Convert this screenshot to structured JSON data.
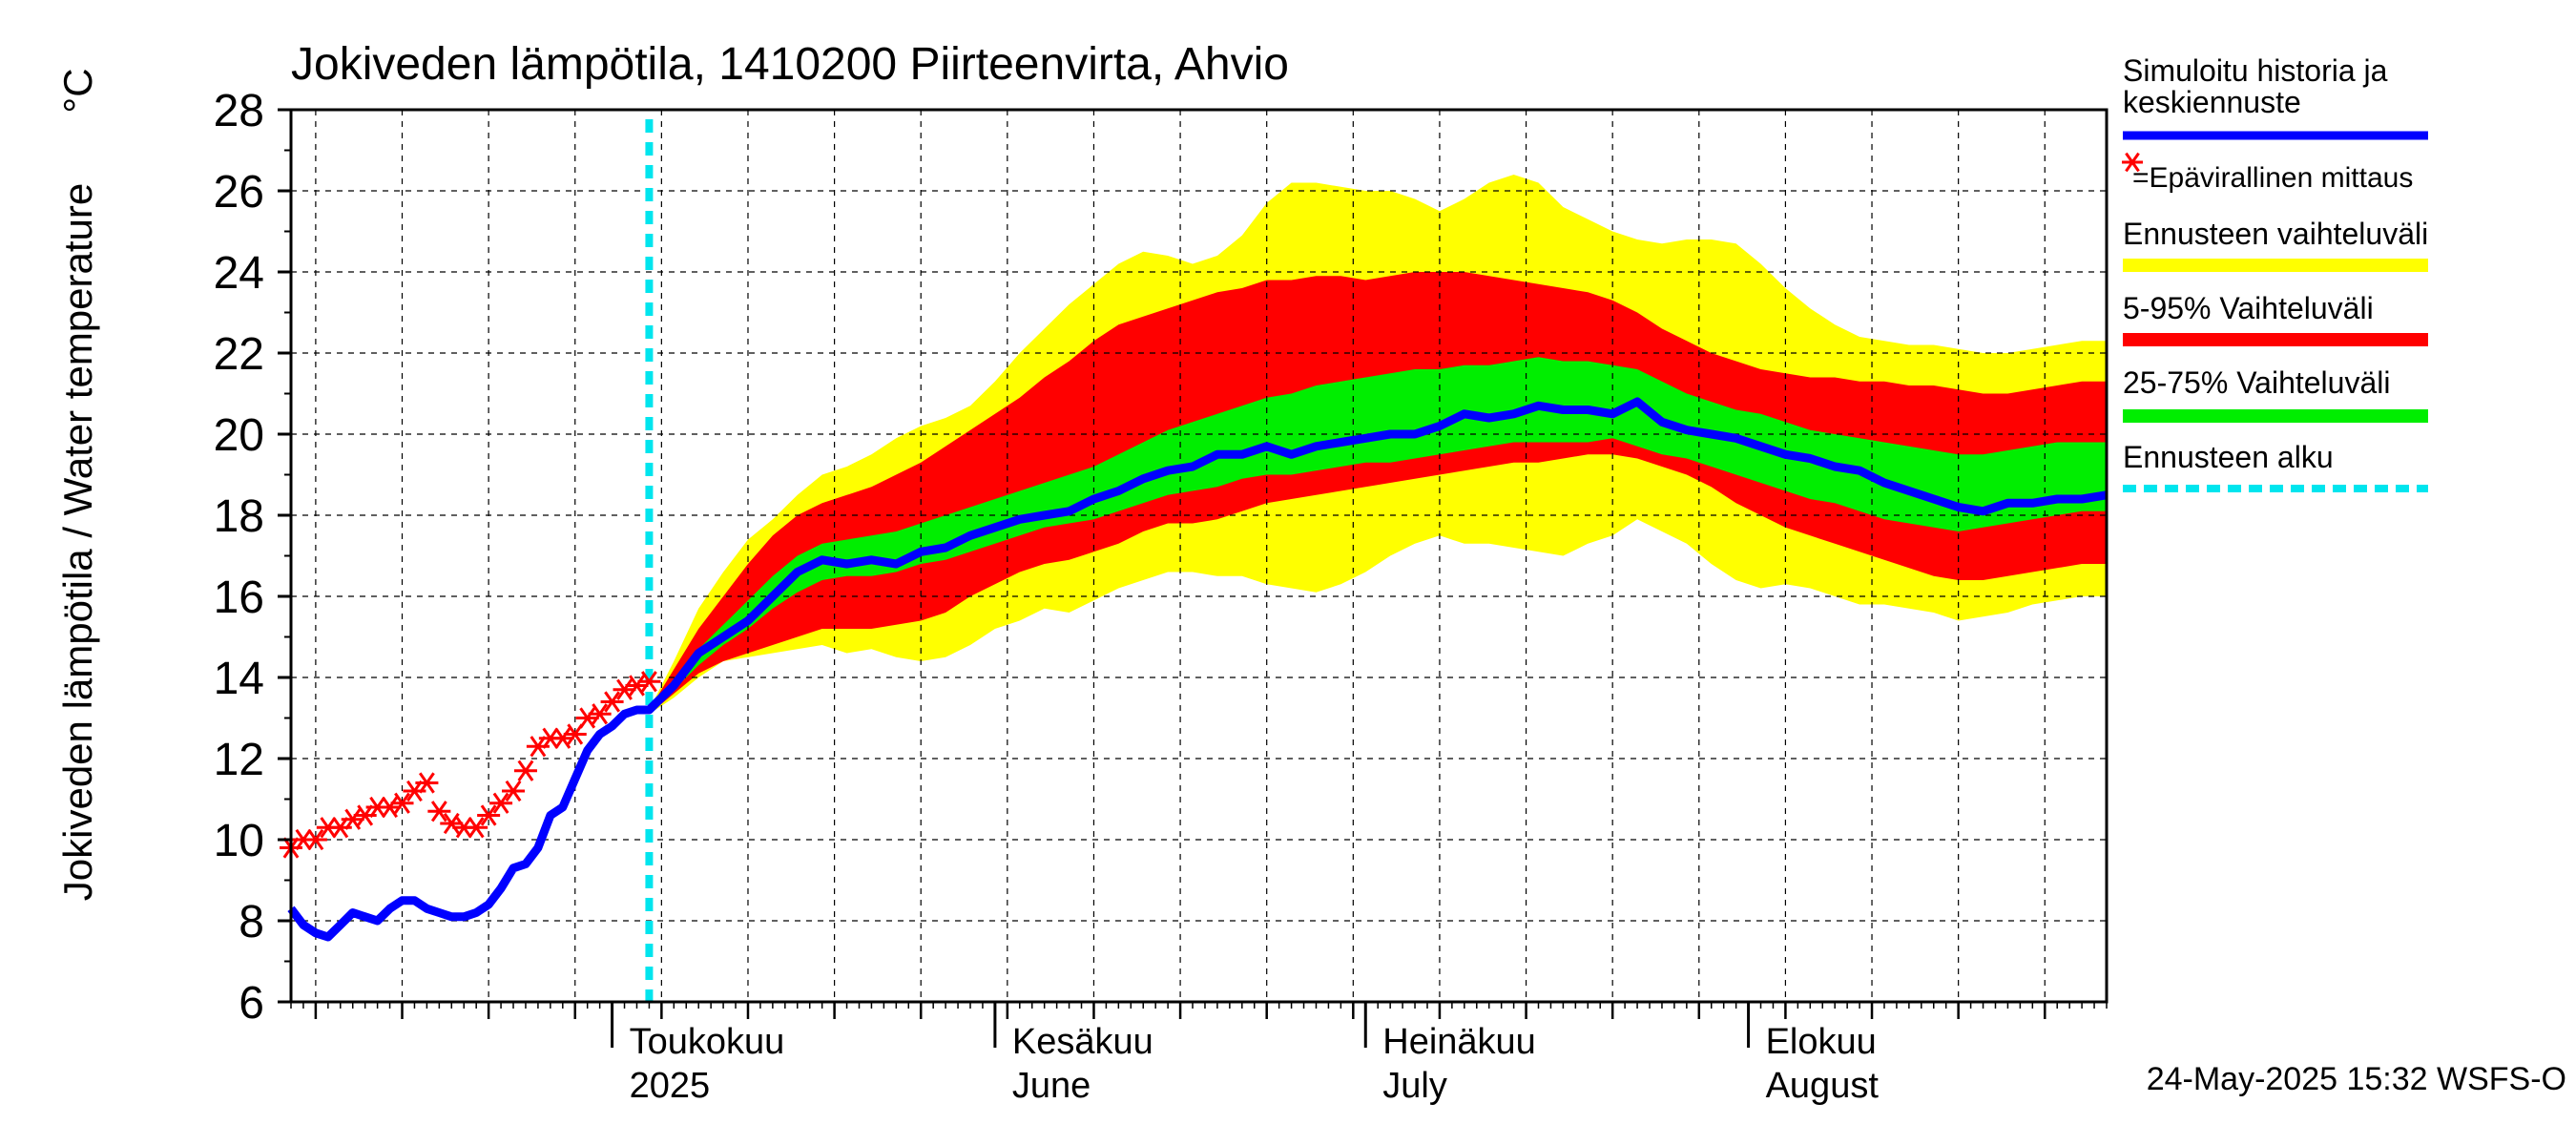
{
  "chart_data": {
    "type": "area",
    "title": "Jokiveden lämpötila, 1410200 Piirteenvirta, Ahvio",
    "ylabel": "Jokiveden lämpötila / Water temperature",
    "yunit": "°C",
    "ylim": [
      6,
      28
    ],
    "yticks": [
      6,
      8,
      10,
      12,
      14,
      16,
      18,
      20,
      22,
      24,
      26,
      28
    ],
    "xlim": [
      "2025-04-05",
      "2025-08-30"
    ],
    "grid": true,
    "month_labels": [
      {
        "label": "Toukokuu",
        "sub": "2025",
        "date": "2025-05-01"
      },
      {
        "label": "Kesäkuu",
        "sub": "June",
        "date": "2025-06-01"
      },
      {
        "label": "Heinäkuu",
        "sub": "July",
        "date": "2025-07-01"
      },
      {
        "label": "Elokuu",
        "sub": "August",
        "date": "2025-08-01"
      }
    ],
    "forecast_start": "2025-05-04",
    "timestamp": "24-May-2025 15:32 WSFS-O",
    "legend": {
      "placement": "right",
      "items": [
        {
          "label": "Simuloitu historia ja keskiennuste",
          "color": "#0000ff"
        },
        {
          "label": "=Epävirallinen mittaus",
          "color": "#ff0000"
        },
        {
          "label": "Ennusteen vaihteluväli",
          "color": "#ffff00"
        },
        {
          "label": "5-95% Vaihteluväli",
          "color": "#ff0000"
        },
        {
          "label": "25-75% Vaihteluväli",
          "color": "#00ee00"
        },
        {
          "label": "Ennusteen alku",
          "color": "#00e5ee"
        }
      ]
    },
    "colors": {
      "simulated": "#0000ff",
      "observed": "#ff0000",
      "range_full": "#ffff00",
      "range_5_95": "#ff0000",
      "range_25_75": "#00ee00",
      "forecast_start": "#00e5ee"
    },
    "simulated": {
      "x": [
        "2025-04-05",
        "2025-04-06",
        "2025-04-07",
        "2025-04-08",
        "2025-04-09",
        "2025-04-10",
        "2025-04-11",
        "2025-04-12",
        "2025-04-13",
        "2025-04-14",
        "2025-04-15",
        "2025-04-16",
        "2025-04-17",
        "2025-04-18",
        "2025-04-19",
        "2025-04-20",
        "2025-04-21",
        "2025-04-22",
        "2025-04-23",
        "2025-04-24",
        "2025-04-25",
        "2025-04-26",
        "2025-04-27",
        "2025-04-28",
        "2025-04-29",
        "2025-04-30",
        "2025-05-01",
        "2025-05-02",
        "2025-05-03",
        "2025-05-04",
        "2025-05-06",
        "2025-05-08",
        "2025-05-10",
        "2025-05-12",
        "2025-05-14",
        "2025-05-16",
        "2025-05-18",
        "2025-05-20",
        "2025-05-22",
        "2025-05-24",
        "2025-05-26",
        "2025-05-28",
        "2025-05-30",
        "2025-06-01",
        "2025-06-03",
        "2025-06-05",
        "2025-06-07",
        "2025-06-09",
        "2025-06-11",
        "2025-06-13",
        "2025-06-15",
        "2025-06-17",
        "2025-06-19",
        "2025-06-21",
        "2025-06-23",
        "2025-06-25",
        "2025-06-27",
        "2025-06-29",
        "2025-07-01",
        "2025-07-03",
        "2025-07-05",
        "2025-07-07",
        "2025-07-09",
        "2025-07-11",
        "2025-07-13",
        "2025-07-15",
        "2025-07-17",
        "2025-07-19",
        "2025-07-21",
        "2025-07-23",
        "2025-07-25",
        "2025-07-27",
        "2025-07-29",
        "2025-07-31",
        "2025-08-02",
        "2025-08-04",
        "2025-08-06",
        "2025-08-08",
        "2025-08-10",
        "2025-08-12",
        "2025-08-14",
        "2025-08-16",
        "2025-08-18",
        "2025-08-20",
        "2025-08-22",
        "2025-08-24",
        "2025-08-26",
        "2025-08-28",
        "2025-08-30"
      ],
      "values": [
        8.3,
        7.9,
        7.7,
        7.6,
        7.9,
        8.2,
        8.1,
        8.0,
        8.3,
        8.5,
        8.5,
        8.3,
        8.2,
        8.1,
        8.1,
        8.2,
        8.4,
        8.8,
        9.3,
        9.4,
        9.8,
        10.6,
        10.8,
        11.5,
        12.2,
        12.6,
        12.8,
        13.1,
        13.2,
        13.2,
        13.8,
        14.6,
        15.0,
        15.4,
        16.0,
        16.6,
        16.9,
        16.8,
        16.9,
        16.8,
        17.1,
        17.2,
        17.5,
        17.7,
        17.9,
        18.0,
        18.1,
        18.4,
        18.6,
        18.9,
        19.1,
        19.2,
        19.5,
        19.5,
        19.7,
        19.5,
        19.7,
        19.8,
        19.9,
        20.0,
        20.0,
        20.2,
        20.5,
        20.4,
        20.5,
        20.7,
        20.6,
        20.6,
        20.5,
        20.8,
        20.3,
        20.1,
        20.0,
        19.9,
        19.7,
        19.5,
        19.4,
        19.2,
        19.1,
        18.8,
        18.6,
        18.4,
        18.2,
        18.1,
        18.3,
        18.3,
        18.4,
        18.4,
        18.5
      ]
    },
    "observed": {
      "x": [
        "2025-04-05",
        "2025-04-06",
        "2025-04-07",
        "2025-04-08",
        "2025-04-09",
        "2025-04-10",
        "2025-04-11",
        "2025-04-12",
        "2025-04-13",
        "2025-04-14",
        "2025-04-15",
        "2025-04-16",
        "2025-04-17",
        "2025-04-18",
        "2025-04-19",
        "2025-04-20",
        "2025-04-21",
        "2025-04-22",
        "2025-04-23",
        "2025-04-24",
        "2025-04-25",
        "2025-04-26",
        "2025-04-27",
        "2025-04-28",
        "2025-04-29",
        "2025-04-30",
        "2025-05-01",
        "2025-05-02",
        "2025-05-03",
        "2025-05-04"
      ],
      "values": [
        9.8,
        10.0,
        10.0,
        10.3,
        10.3,
        10.5,
        10.6,
        10.8,
        10.8,
        10.9,
        11.2,
        11.4,
        10.7,
        10.4,
        10.3,
        10.3,
        10.6,
        10.9,
        11.2,
        11.7,
        12.3,
        12.5,
        12.5,
        12.6,
        13.0,
        13.1,
        13.4,
        13.7,
        13.8,
        13.9
      ]
    },
    "forecast_ranges": {
      "x": [
        "2025-05-04",
        "2025-05-06",
        "2025-05-08",
        "2025-05-10",
        "2025-05-12",
        "2025-05-14",
        "2025-05-16",
        "2025-05-18",
        "2025-05-20",
        "2025-05-22",
        "2025-05-24",
        "2025-05-26",
        "2025-05-28",
        "2025-05-30",
        "2025-06-01",
        "2025-06-03",
        "2025-06-05",
        "2025-06-07",
        "2025-06-09",
        "2025-06-11",
        "2025-06-13",
        "2025-06-15",
        "2025-06-17",
        "2025-06-19",
        "2025-06-21",
        "2025-06-23",
        "2025-06-25",
        "2025-06-27",
        "2025-06-29",
        "2025-07-01",
        "2025-07-03",
        "2025-07-05",
        "2025-07-07",
        "2025-07-09",
        "2025-07-11",
        "2025-07-13",
        "2025-07-15",
        "2025-07-17",
        "2025-07-19",
        "2025-07-21",
        "2025-07-23",
        "2025-07-25",
        "2025-07-27",
        "2025-07-29",
        "2025-07-31",
        "2025-08-02",
        "2025-08-04",
        "2025-08-06",
        "2025-08-08",
        "2025-08-10",
        "2025-08-12",
        "2025-08-14",
        "2025-08-16",
        "2025-08-18",
        "2025-08-20",
        "2025-08-22",
        "2025-08-24",
        "2025-08-26",
        "2025-08-28",
        "2025-08-30"
      ],
      "full_min": [
        13.1,
        13.5,
        14.0,
        14.4,
        14.5,
        14.6,
        14.7,
        14.8,
        14.6,
        14.7,
        14.5,
        14.4,
        14.5,
        14.8,
        15.2,
        15.4,
        15.7,
        15.6,
        15.9,
        16.2,
        16.4,
        16.6,
        16.6,
        16.5,
        16.5,
        16.3,
        16.2,
        16.1,
        16.3,
        16.6,
        17.0,
        17.3,
        17.5,
        17.3,
        17.3,
        17.2,
        17.1,
        17.0,
        17.3,
        17.5,
        17.9,
        17.6,
        17.3,
        16.8,
        16.4,
        16.2,
        16.3,
        16.2,
        16.0,
        15.8,
        15.8,
        15.7,
        15.6,
        15.4,
        15.5,
        15.6,
        15.8,
        15.9,
        16.0,
        16.0
      ],
      "p5": [
        13.1,
        13.6,
        14.1,
        14.4,
        14.6,
        14.8,
        15.0,
        15.2,
        15.2,
        15.2,
        15.3,
        15.4,
        15.6,
        16.0,
        16.3,
        16.6,
        16.8,
        16.9,
        17.1,
        17.3,
        17.6,
        17.8,
        17.8,
        17.9,
        18.1,
        18.3,
        18.4,
        18.5,
        18.6,
        18.7,
        18.8,
        18.9,
        19.0,
        19.1,
        19.2,
        19.3,
        19.3,
        19.4,
        19.5,
        19.5,
        19.4,
        19.2,
        19.0,
        18.7,
        18.3,
        18.0,
        17.7,
        17.5,
        17.3,
        17.1,
        16.9,
        16.7,
        16.5,
        16.4,
        16.4,
        16.5,
        16.6,
        16.7,
        16.8,
        16.8
      ],
      "p25": [
        13.1,
        13.7,
        14.3,
        14.8,
        15.2,
        15.7,
        16.1,
        16.4,
        16.5,
        16.5,
        16.6,
        16.8,
        16.9,
        17.1,
        17.3,
        17.5,
        17.7,
        17.8,
        17.9,
        18.1,
        18.3,
        18.5,
        18.6,
        18.7,
        18.9,
        19.0,
        19.0,
        19.1,
        19.2,
        19.3,
        19.3,
        19.4,
        19.5,
        19.6,
        19.7,
        19.8,
        19.8,
        19.8,
        19.8,
        19.9,
        19.7,
        19.5,
        19.4,
        19.2,
        19.0,
        18.8,
        18.6,
        18.4,
        18.3,
        18.1,
        17.9,
        17.8,
        17.7,
        17.6,
        17.7,
        17.8,
        17.9,
        18.0,
        18.1,
        18.1
      ],
      "p75": [
        13.2,
        13.9,
        14.7,
        15.3,
        15.9,
        16.5,
        17.0,
        17.3,
        17.4,
        17.5,
        17.6,
        17.8,
        18.0,
        18.2,
        18.4,
        18.6,
        18.8,
        19.0,
        19.2,
        19.5,
        19.8,
        20.1,
        20.3,
        20.5,
        20.7,
        20.9,
        21.0,
        21.2,
        21.3,
        21.4,
        21.5,
        21.6,
        21.6,
        21.7,
        21.7,
        21.8,
        21.9,
        21.8,
        21.8,
        21.7,
        21.6,
        21.3,
        21.0,
        20.8,
        20.6,
        20.5,
        20.3,
        20.1,
        20.0,
        19.9,
        19.8,
        19.7,
        19.6,
        19.5,
        19.5,
        19.6,
        19.7,
        19.8,
        19.8,
        19.8
      ],
      "p95": [
        13.2,
        14.2,
        15.2,
        16.0,
        16.8,
        17.5,
        18.0,
        18.3,
        18.5,
        18.7,
        19.0,
        19.3,
        19.7,
        20.1,
        20.5,
        20.9,
        21.4,
        21.8,
        22.3,
        22.7,
        22.9,
        23.1,
        23.3,
        23.5,
        23.6,
        23.8,
        23.8,
        23.9,
        23.9,
        23.8,
        23.9,
        24.0,
        24.0,
        24.0,
        23.9,
        23.8,
        23.7,
        23.6,
        23.5,
        23.3,
        23.0,
        22.6,
        22.3,
        22.0,
        21.8,
        21.6,
        21.5,
        21.4,
        21.4,
        21.3,
        21.3,
        21.2,
        21.2,
        21.1,
        21.0,
        21.0,
        21.1,
        21.2,
        21.3,
        21.3
      ],
      "full_max": [
        13.2,
        14.4,
        15.7,
        16.6,
        17.4,
        17.9,
        18.5,
        19.0,
        19.2,
        19.5,
        19.9,
        20.2,
        20.4,
        20.7,
        21.3,
        22.0,
        22.6,
        23.2,
        23.7,
        24.2,
        24.5,
        24.4,
        24.2,
        24.4,
        24.9,
        25.7,
        26.2,
        26.2,
        26.1,
        26.0,
        26.0,
        25.8,
        25.5,
        25.8,
        26.2,
        26.4,
        26.2,
        25.6,
        25.3,
        25.0,
        24.8,
        24.7,
        24.8,
        24.8,
        24.7,
        24.2,
        23.6,
        23.1,
        22.7,
        22.4,
        22.3,
        22.2,
        22.2,
        22.1,
        22.0,
        22.0,
        22.1,
        22.2,
        22.3,
        22.3
      ]
    }
  }
}
